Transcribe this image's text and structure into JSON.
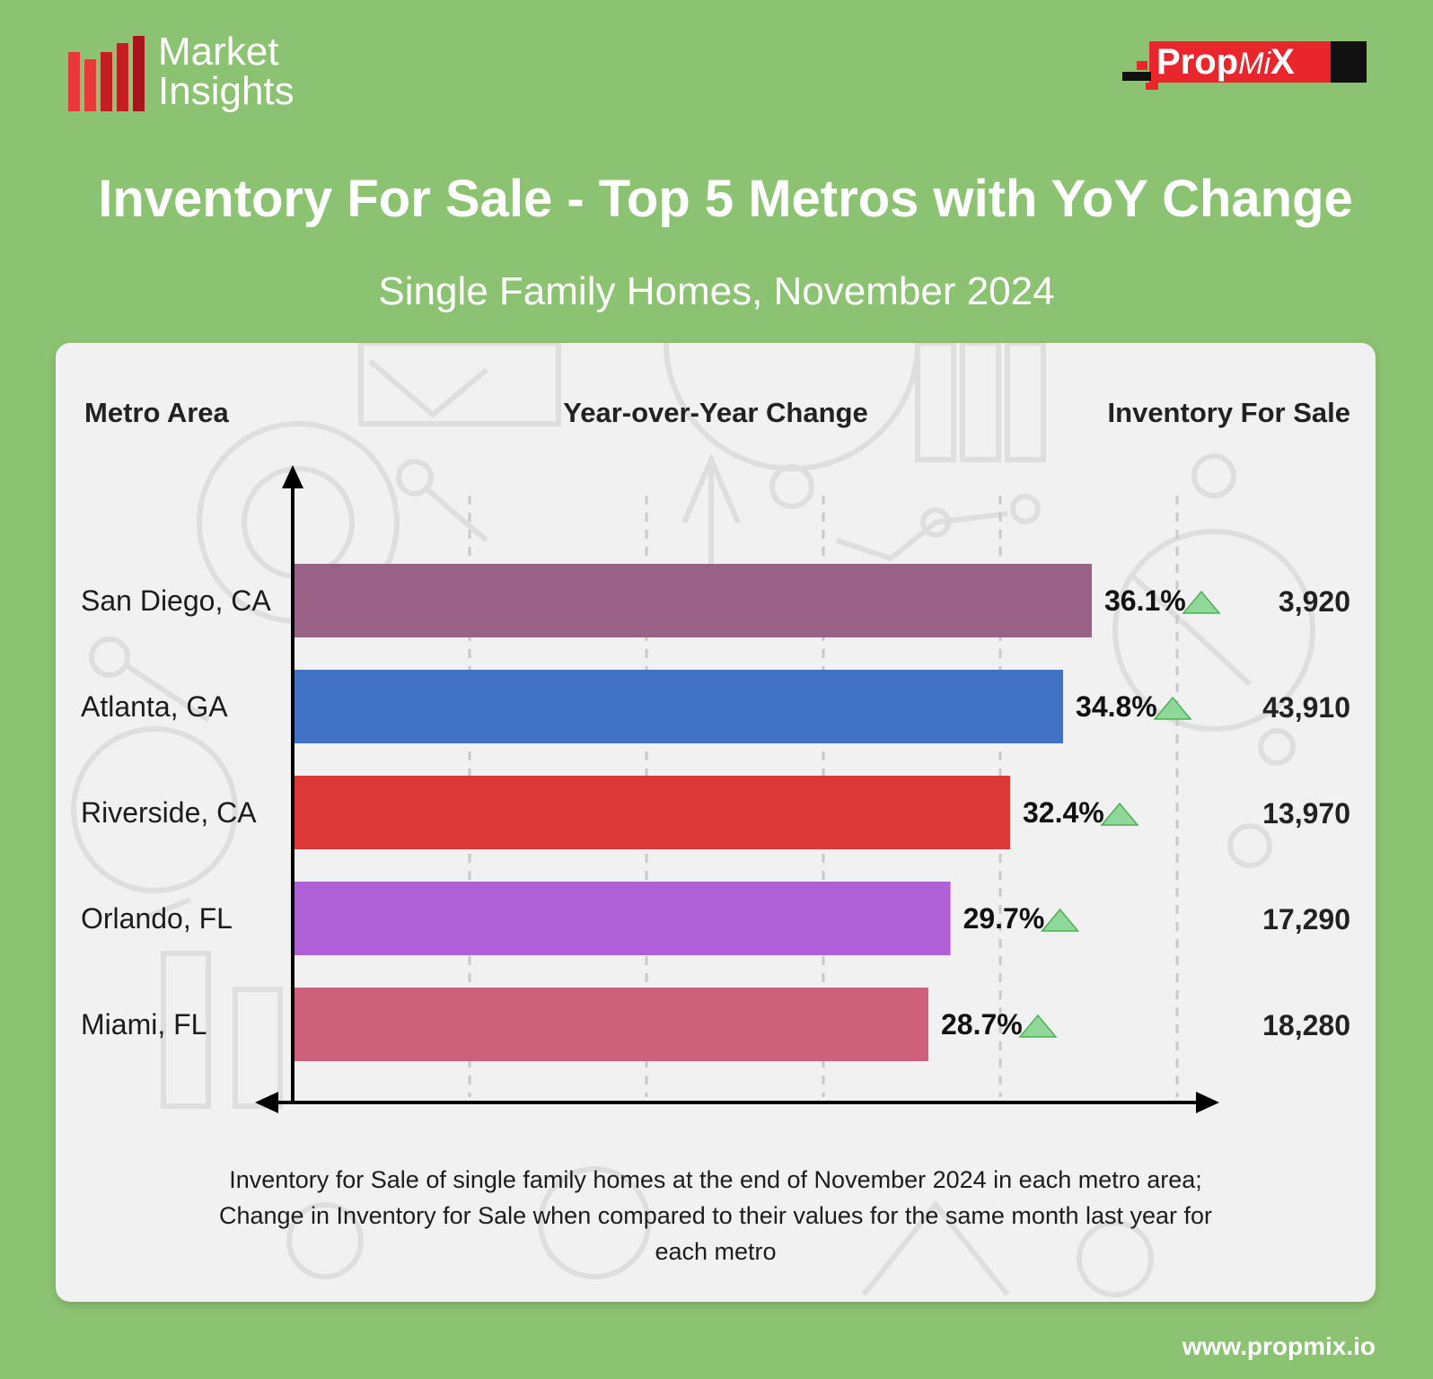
{
  "logo": {
    "line1": "Market",
    "line2": "Insights",
    "bar_colors": [
      "#e8383a",
      "#e8383a",
      "#c41e23",
      "#c41e23",
      "#a9151b"
    ]
  },
  "brand": {
    "prefix": "Prop",
    "mid": "Mi",
    "suffix": "X",
    "color_red": "#e8262c",
    "color_black": "#111111"
  },
  "title": "Inventory For Sale - Top 5 Metros with YoY Change",
  "subtitle": "Single Family Homes, November 2024",
  "columns": {
    "metro": "Metro Area",
    "yoy": "Year-over-Year Change",
    "inventory": "Inventory For Sale"
  },
  "chart_data": {
    "type": "bar",
    "orientation": "horizontal",
    "title": "Inventory For Sale - Top 5 Metros with YoY Change",
    "subtitle": "Single Family Homes, November 2024",
    "categories": [
      "San Diego, CA",
      "Atlanta, GA",
      "Riverside, CA",
      "Orlando, FL",
      "Miami, FL"
    ],
    "values": [
      36.1,
      34.8,
      32.4,
      29.7,
      28.7
    ],
    "value_labels": [
      "36.1%",
      "34.8%",
      "32.4%",
      "29.7%",
      "28.7%"
    ],
    "inventory": [
      3920,
      43910,
      13970,
      17290,
      18280
    ],
    "inventory_labels": [
      "3,920",
      "43,910",
      "13,970",
      "17,290",
      "18,280"
    ],
    "bar_colors": [
      "#9a6186",
      "#4272c6",
      "#dc3838",
      "#b060d6",
      "#cd607a"
    ],
    "trend_icon": "up-triangle-icon",
    "trend_color": "#8fd89a",
    "xlim": [
      0,
      40
    ],
    "grid": true,
    "gridlines": [
      8,
      16,
      24,
      32,
      40
    ],
    "legend": "none"
  },
  "footnote": {
    "line1": "Inventory for Sale of single family homes at the end of November 2024 in each metro area;",
    "line2": "Change in Inventory for Sale when compared to their values for the same month last year for",
    "line3": "each metro"
  },
  "website": "www.propmix.io"
}
